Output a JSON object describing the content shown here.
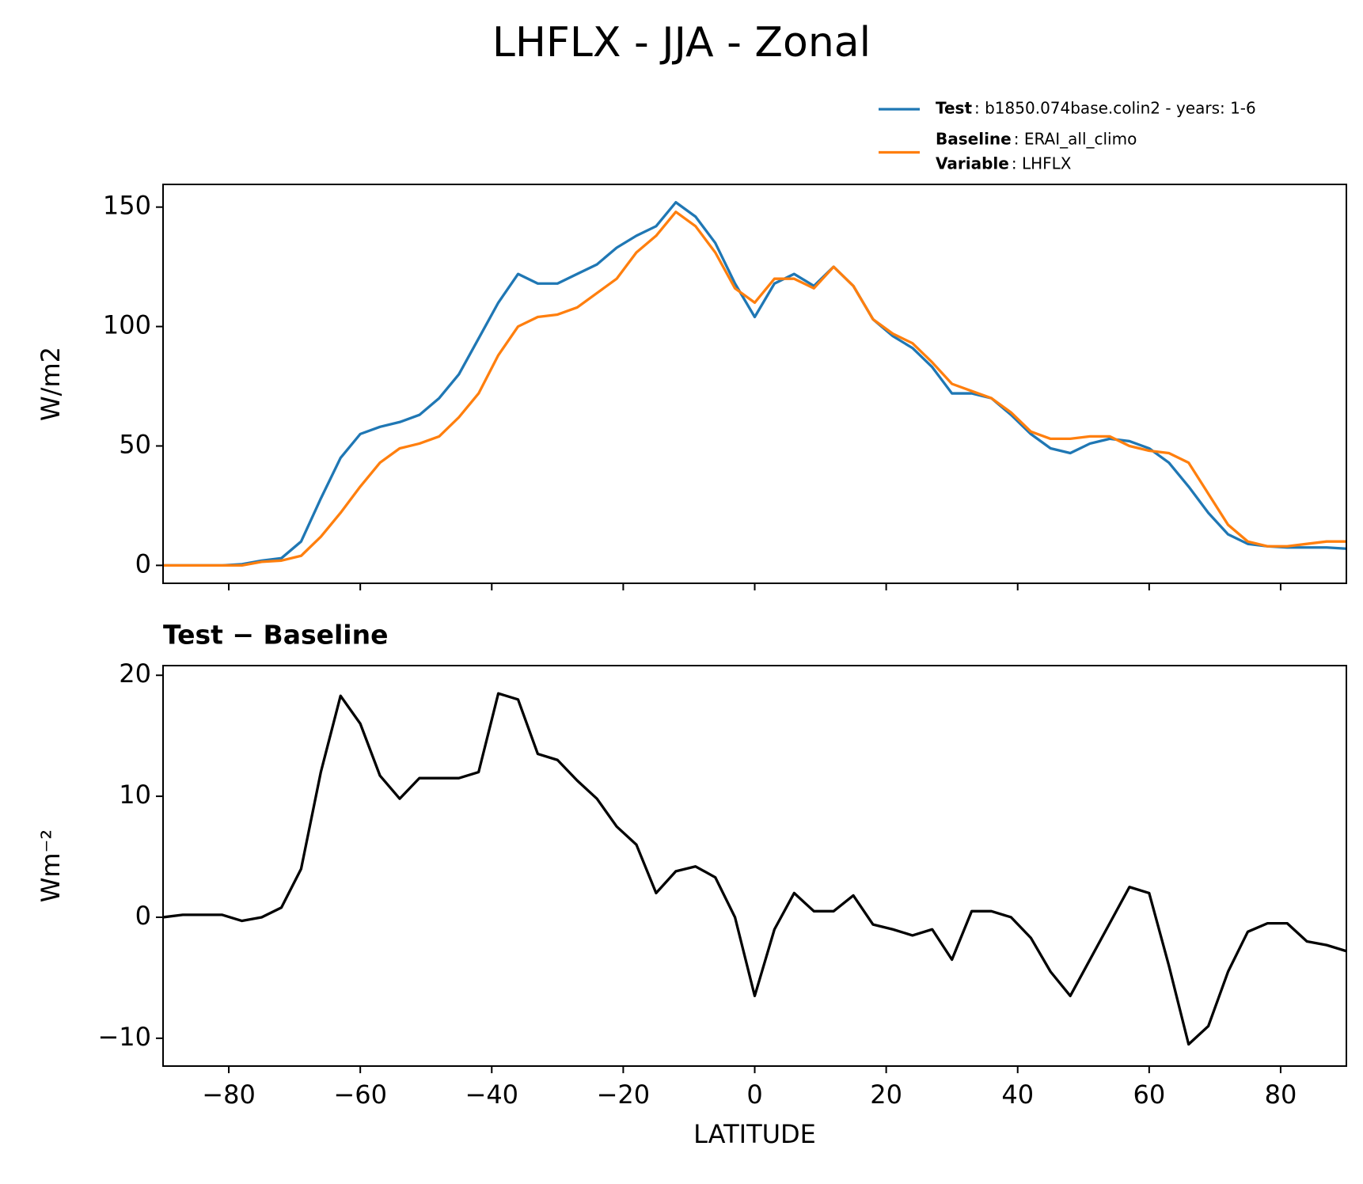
{
  "title": "LHFLX - JJA - Zonal",
  "chart_data": [
    {
      "type": "line",
      "ylabel": "W/m2",
      "x": [
        -90,
        -87,
        -84,
        -81,
        -78,
        -75,
        -72,
        -69,
        -66,
        -63,
        -60,
        -57,
        -54,
        -51,
        -48,
        -45,
        -42,
        -39,
        -36,
        -33,
        -30,
        -27,
        -24,
        -21,
        -18,
        -15,
        -12,
        -9,
        -6,
        -3,
        0,
        3,
        6,
        9,
        12,
        15,
        18,
        21,
        24,
        27,
        30,
        33,
        36,
        39,
        42,
        45,
        48,
        51,
        54,
        57,
        60,
        63,
        66,
        69,
        72,
        75,
        78,
        81,
        84,
        87,
        90
      ],
      "series": [
        {
          "name": "Test",
          "description": ": b1850.074base.colin2 - years: 1-6",
          "color": "#1f77b4",
          "values": [
            0,
            0,
            0,
            0,
            0.5,
            2,
            3,
            10,
            28,
            45,
            55,
            58,
            60,
            63,
            70,
            80,
            95,
            110,
            122,
            118,
            118,
            122,
            126,
            133,
            138,
            142,
            152,
            146,
            135,
            118,
            104,
            118,
            122,
            117,
            125,
            117,
            103,
            96,
            91,
            83,
            72,
            72,
            70,
            63,
            55,
            49,
            47,
            51,
            53,
            52,
            49,
            43,
            33,
            22,
            13,
            9,
            8,
            7.5,
            7.5,
            7.5,
            7
          ]
        },
        {
          "name": "Baseline",
          "description": ": ERAI_all_climo",
          "color": "#ff7f0e",
          "values": [
            0,
            0,
            0,
            0,
            0,
            1.5,
            2,
            4,
            12,
            22,
            33,
            43,
            49,
            51,
            54,
            62,
            72,
            88,
            100,
            104,
            105,
            108,
            114,
            120,
            131,
            138,
            148,
            142,
            131,
            116,
            110,
            120,
            120,
            116,
            125,
            117,
            103,
            97,
            93,
            85,
            76,
            73,
            70,
            64,
            56,
            53,
            53,
            54,
            54,
            50,
            48,
            47,
            43,
            30,
            17,
            10,
            8,
            8,
            9,
            10,
            10
          ]
        }
      ],
      "legend_extra": {
        "name": "Variable",
        "description": ": LHFLX"
      },
      "xlim": [
        -90,
        90
      ],
      "xticks": [
        -80,
        -60,
        -40,
        -20,
        0,
        20,
        40,
        60,
        80
      ],
      "show_xtick_labels": false,
      "ylim": [
        -7.5,
        159.5
      ],
      "yticks": [
        0,
        50,
        100,
        150
      ]
    },
    {
      "type": "line",
      "title": "Test − Baseline",
      "xlabel": "LATITUDE",
      "ylabel": "Wm⁻²",
      "x": [
        -90,
        -87,
        -84,
        -81,
        -78,
        -75,
        -72,
        -69,
        -66,
        -63,
        -60,
        -57,
        -54,
        -51,
        -48,
        -45,
        -42,
        -39,
        -36,
        -33,
        -30,
        -27,
        -24,
        -21,
        -18,
        -15,
        -12,
        -9,
        -6,
        -3,
        0,
        3,
        6,
        9,
        12,
        15,
        18,
        21,
        24,
        27,
        30,
        33,
        36,
        39,
        42,
        45,
        48,
        51,
        54,
        57,
        60,
        63,
        66,
        69,
        72,
        75,
        78,
        81,
        84,
        87,
        90
      ],
      "series": [
        {
          "color": "#000000",
          "values": [
            0,
            0.2,
            0.2,
            0.2,
            -0.3,
            0,
            0.8,
            4,
            12,
            18.3,
            16,
            11.7,
            9.8,
            11.5,
            11.5,
            11.5,
            12,
            18.5,
            18,
            13.5,
            13,
            11.3,
            9.8,
            7.5,
            6,
            2,
            3.8,
            4.2,
            3.3,
            0,
            -6.5,
            -1,
            2,
            0.5,
            0.5,
            1.8,
            -0.6,
            -1,
            -1.5,
            -1,
            -3.5,
            0.5,
            0.5,
            0,
            -1.7,
            -4.5,
            -6.5,
            -3.5,
            -0.5,
            2.5,
            2,
            -4,
            -10.5,
            -9,
            -4.5,
            -1.2,
            -0.5,
            -0.5,
            -2,
            -2.3,
            -2.8
          ]
        }
      ],
      "xlim": [
        -90,
        90
      ],
      "xticks": [
        {
          "value": -80,
          "label": "−80"
        },
        {
          "value": -60,
          "label": "−60"
        },
        {
          "value": -40,
          "label": "−40"
        },
        {
          "value": -20,
          "label": "−20"
        },
        0,
        20,
        40,
        60,
        80
      ],
      "show_xtick_labels": true,
      "ylim": [
        -12.3,
        20.8
      ],
      "yticks": [
        {
          "value": -10,
          "label": "−10"
        },
        0,
        10,
        20
      ]
    }
  ]
}
